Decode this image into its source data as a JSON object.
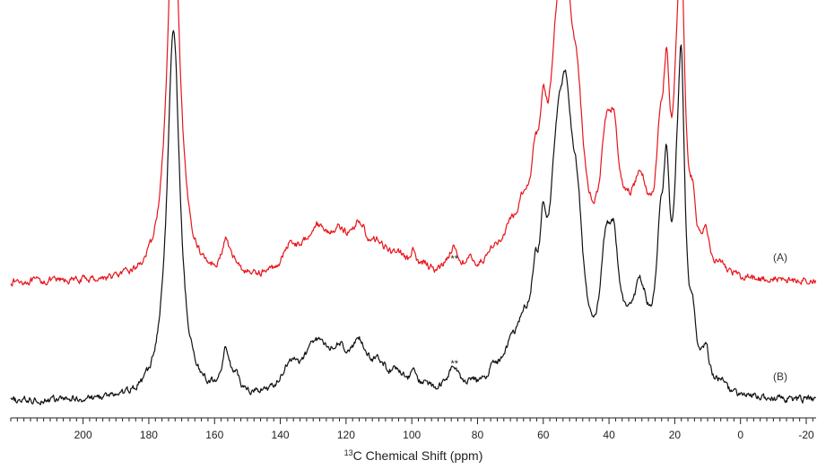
{
  "chart_data": {
    "type": "line",
    "title": "",
    "xlabel": {
      "sup": "13",
      "text": "C Chemical Shift (ppm)"
    },
    "ylabel": "",
    "x_reversed": true,
    "xlim": [
      222,
      -23
    ],
    "major_ticks": [
      200,
      180,
      160,
      140,
      120,
      100,
      80,
      60,
      40,
      20,
      0,
      -20
    ],
    "tick_labels": [
      "200",
      "180",
      "160",
      "140",
      "120",
      "100",
      "80",
      "60",
      "40",
      "20",
      "0",
      "-20"
    ],
    "minor_tick_step": 2,
    "grid": false,
    "annotations": [
      {
        "text": "**",
        "x": 87,
        "series": "(A)"
      },
      {
        "text": "**",
        "x": 87,
        "series": "(B)"
      }
    ],
    "series": [
      {
        "name": "(A)",
        "color": "#e8141b",
        "baseline": 0.0,
        "offset": 0.255,
        "peaks": [
          [
            172.5,
            0.82,
            2.3
          ],
          [
            156.5,
            0.07,
            1.4
          ],
          [
            153.5,
            0.02,
            1.2
          ],
          [
            137,
            0.05,
            2.5
          ],
          [
            129,
            0.1,
            5
          ],
          [
            122,
            0.06,
            3
          ],
          [
            116,
            0.09,
            3
          ],
          [
            110,
            0.05,
            3
          ],
          [
            104,
            0.04,
            3
          ],
          [
            99.5,
            0.035,
            0.8
          ],
          [
            96,
            0.02,
            1.5
          ],
          [
            87.5,
            0.055,
            2.2
          ],
          [
            82,
            0.02,
            1.5
          ],
          [
            75,
            0.04,
            2.5
          ],
          [
            70,
            0.06,
            2.5
          ],
          [
            66,
            0.1,
            2.5
          ],
          [
            62.5,
            0.14,
            1.5
          ],
          [
            60,
            0.2,
            1.3
          ],
          [
            56,
            0.32,
            2.5
          ],
          [
            53,
            0.46,
            2.8
          ],
          [
            49.5,
            0.22,
            2
          ],
          [
            41,
            0.2,
            2
          ],
          [
            38.5,
            0.22,
            2
          ],
          [
            34.5,
            0.04,
            2
          ],
          [
            30.5,
            0.17,
            3
          ],
          [
            24.5,
            0.2,
            1.5
          ],
          [
            22.5,
            0.32,
            1.2
          ],
          [
            19.5,
            0.18,
            1.2
          ],
          [
            18,
            0.6,
            1.3
          ],
          [
            14.5,
            0.1,
            1.2
          ],
          [
            10.5,
            0.08,
            1.2
          ],
          [
            6,
            0.02,
            2
          ]
        ]
      },
      {
        "name": "(B)",
        "color": "#111111",
        "baseline": 0.0,
        "offset": 0.0,
        "peaks": [
          [
            172.5,
            0.8,
            2.3
          ],
          [
            156.5,
            0.09,
            1.4
          ],
          [
            153.5,
            0.03,
            1.2
          ],
          [
            137,
            0.05,
            2.5
          ],
          [
            129,
            0.11,
            5
          ],
          [
            122,
            0.06,
            3
          ],
          [
            116,
            0.09,
            3
          ],
          [
            110,
            0.05,
            3
          ],
          [
            104,
            0.04,
            3
          ],
          [
            99.5,
            0.04,
            0.8
          ],
          [
            96,
            0.02,
            1.5
          ],
          [
            87.5,
            0.055,
            2.2
          ],
          [
            82,
            0.02,
            1.5
          ],
          [
            75,
            0.04,
            2.5
          ],
          [
            70,
            0.06,
            2.5
          ],
          [
            66,
            0.1,
            2.5
          ],
          [
            62.5,
            0.14,
            1.5
          ],
          [
            60,
            0.2,
            1.3
          ],
          [
            56,
            0.32,
            2.5
          ],
          [
            53,
            0.48,
            2.8
          ],
          [
            49.5,
            0.22,
            2
          ],
          [
            41,
            0.21,
            2
          ],
          [
            38.5,
            0.23,
            2
          ],
          [
            34.5,
            0.04,
            2
          ],
          [
            30.5,
            0.19,
            3
          ],
          [
            24.5,
            0.23,
            1.5
          ],
          [
            22.5,
            0.36,
            1.2
          ],
          [
            19.5,
            0.18,
            1.2
          ],
          [
            18,
            0.62,
            1.3
          ],
          [
            14.5,
            0.1,
            1.2
          ],
          [
            10.5,
            0.08,
            1.2
          ],
          [
            6,
            0.02,
            2
          ]
        ]
      }
    ]
  }
}
